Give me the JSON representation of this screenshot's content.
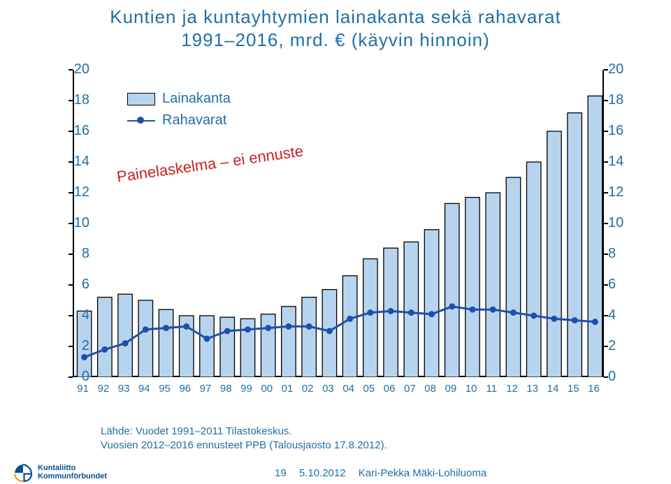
{
  "title_line1": "Kuntien ja kuntayhtymien lainakanta sekä rahavarat",
  "title_line2": "1991–2016, mrd. € (käyvin hinnoin)",
  "chart": {
    "type": "bar+line",
    "categories": [
      "91",
      "92",
      "93",
      "94",
      "95",
      "96",
      "97",
      "98",
      "99",
      "00",
      "01",
      "02",
      "03",
      "04",
      "05",
      "06",
      "07",
      "08",
      "09",
      "10",
      "11",
      "12",
      "13",
      "14",
      "15",
      "16"
    ],
    "bars": {
      "label": "Lainakanta",
      "values": [
        4.3,
        5.2,
        5.4,
        5.0,
        4.4,
        4.0,
        4.0,
        3.9,
        3.8,
        4.1,
        4.6,
        5.2,
        5.7,
        6.6,
        7.7,
        8.4,
        8.8,
        9.6,
        11.3,
        11.7,
        12.0,
        13.0,
        14.0,
        16.0,
        17.2,
        18.3
      ],
      "fill": "#b7d4ef",
      "stroke": "#000000",
      "bar_width_ratio": 0.7
    },
    "line": {
      "label": "Rahavarat",
      "values": [
        1.3,
        1.8,
        2.2,
        3.1,
        3.2,
        3.3,
        2.5,
        3.0,
        3.1,
        3.2,
        3.3,
        3.3,
        3.0,
        3.8,
        4.2,
        4.3,
        4.2,
        4.1,
        4.6,
        4.4,
        4.4,
        4.2,
        4.0,
        3.8,
        3.7,
        3.6
      ],
      "stroke": "#1f4fa8",
      "marker_fill": "#1f4fa8",
      "marker_radius": 4.5,
      "line_width": 3
    },
    "ylim": [
      0,
      20
    ],
    "ytick_step": 2,
    "left_axis_label_top": "20",
    "plot_bg": "#ffffff",
    "grid": false
  },
  "annotation_text": "Painelaskelma – ei ennuste",
  "annotation_color": "#cc1f1f",
  "legend_bg": "#ffffff",
  "text_color": "#1f6fa8",
  "source_line1": "Lähde: Vuodet 1991–2011 Tilastokeskus.",
  "source_line2": "Vuosien 2012–2016 ennusteet PPB (Talousjaosto 17.8.2012).",
  "footer": {
    "logo_line1": "Kuntaliitto",
    "logo_line2": "Kommunförbundet",
    "page_no": "19",
    "date": "5.10.2012",
    "author": "Kari-Pekka Mäki-Lohiluoma"
  }
}
